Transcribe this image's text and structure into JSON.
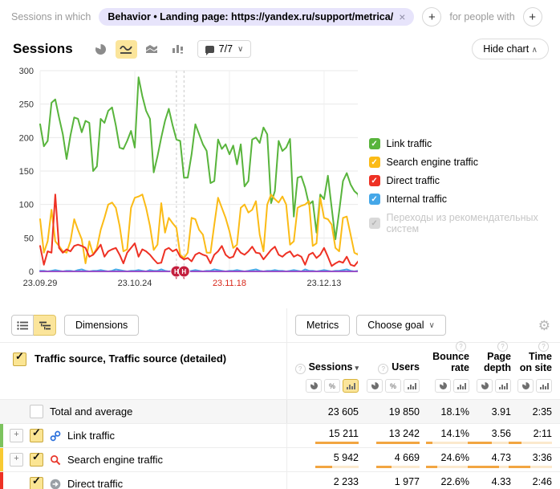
{
  "colors": {
    "accent_selected": "#fbe59b",
    "chip_bg": "#e7e4fb",
    "bar_fill": "#f2a541",
    "bar_track": "#fbe9cd",
    "grid": "#e9e9e9",
    "tick_highlight": "#d8271a"
  },
  "filter_bar": {
    "prefix_label": "Sessions in which",
    "chip_text": "Behavior • Landing page: https://yandex.ru/support/metrica/",
    "suffix_label": "for people with"
  },
  "chart_header": {
    "title": "Sessions",
    "segments_value": "7/7",
    "hide_chart_label": "Hide chart"
  },
  "chart_data": {
    "type": "line",
    "ylim": [
      0,
      300
    ],
    "yticks": [
      0,
      50,
      100,
      150,
      200,
      250,
      300
    ],
    "x_ticks": [
      {
        "day": 0,
        "label": "23.09.29",
        "highlight": false
      },
      {
        "day": 25,
        "label": "23.10.24",
        "highlight": false
      },
      {
        "day": 50,
        "label": "23.11.18",
        "highlight": true
      },
      {
        "day": 75,
        "label": "23.12.13",
        "highlight": false
      }
    ],
    "annotations": {
      "days": [
        36,
        38
      ],
      "label": "Н",
      "color": "#c41f3e"
    },
    "series": [
      {
        "name": "Link traffic",
        "color": "#58b43c",
        "values": [
          220,
          187,
          195,
          252,
          257,
          230,
          205,
          168,
          203,
          230,
          228,
          208,
          225,
          222,
          150,
          157,
          228,
          222,
          240,
          245,
          218,
          185,
          183,
          195,
          210,
          185,
          290,
          262,
          240,
          228,
          148,
          172,
          200,
          225,
          243,
          218,
          197,
          195,
          140,
          140,
          175,
          220,
          205,
          190,
          180,
          132,
          135,
          197,
          183,
          190,
          175,
          188,
          160,
          190,
          127,
          135,
          197,
          200,
          192,
          215,
          205,
          102,
          120,
          195,
          180,
          185,
          198,
          82,
          140,
          142,
          125,
          100,
          105,
          58,
          115,
          108,
          143,
          95,
          48,
          90,
          135,
          147,
          130,
          120,
          115,
          70,
          85,
          120,
          122,
          50
        ]
      },
      {
        "name": "Search engine traffic",
        "color": "#fbbb16",
        "values": [
          78,
          28,
          45,
          92,
          45,
          38,
          30,
          28,
          45,
          78,
          62,
          48,
          12,
          45,
          25,
          35,
          62,
          80,
          100,
          103,
          95,
          68,
          30,
          33,
          95,
          110,
          112,
          115,
          95,
          68,
          32,
          40,
          102,
          58,
          80,
          72,
          65,
          25,
          20,
          28,
          80,
          78,
          62,
          55,
          28,
          28,
          70,
          110,
          95,
          80,
          60,
          35,
          40,
          95,
          100,
          88,
          92,
          105,
          55,
          30,
          100,
          115,
          108,
          103,
          112,
          100,
          40,
          45,
          95,
          98,
          100,
          105,
          38,
          42,
          110,
          80,
          78,
          70,
          35,
          30,
          80,
          82,
          55,
          28,
          25,
          60,
          68,
          30,
          25,
          28
        ]
      },
      {
        "name": "Direct traffic",
        "color": "#ee3124",
        "values": [
          38,
          10,
          30,
          28,
          115,
          35,
          28,
          33,
          30,
          38,
          40,
          38,
          35,
          22,
          25,
          32,
          40,
          22,
          30,
          33,
          35,
          25,
          12,
          28,
          35,
          42,
          22,
          33,
          30,
          25,
          18,
          12,
          13,
          32,
          35,
          30,
          33,
          22,
          18,
          20,
          15,
          25,
          28,
          25,
          23,
          12,
          25,
          30,
          38,
          25,
          20,
          22,
          35,
          28,
          25,
          30,
          37,
          28,
          27,
          18,
          25,
          32,
          37,
          25,
          22,
          27,
          30,
          22,
          25,
          22,
          10,
          25,
          28,
          20,
          25,
          35,
          22,
          8,
          12,
          15,
          13,
          22,
          10,
          8,
          15,
          12,
          10,
          13,
          10,
          6
        ]
      },
      {
        "name": "Internal traffic",
        "color": "#45a7e8",
        "values": [
          1,
          1,
          0,
          1,
          2,
          1,
          0,
          1,
          1,
          0,
          2,
          3,
          1,
          0,
          1,
          1,
          2,
          1,
          0,
          1,
          3,
          2,
          1,
          0,
          1,
          1,
          2,
          1,
          0,
          2,
          1,
          1,
          3,
          1,
          0,
          1,
          2,
          1,
          1,
          0,
          1,
          2,
          1,
          0,
          1,
          1,
          3,
          2,
          1,
          0,
          1,
          1,
          2,
          1,
          0,
          1,
          2,
          3,
          1,
          0,
          1,
          1,
          2,
          1,
          1,
          0,
          1,
          2,
          1,
          0,
          3,
          1,
          1,
          0,
          1,
          2,
          1,
          0,
          1,
          1,
          2,
          3,
          1,
          0,
          1,
          4,
          2,
          1,
          1,
          0
        ]
      },
      {
        "name": "Переходы из рекомендательных систем",
        "color": "#9750c8",
        "values": [
          0,
          0,
          0,
          0,
          0,
          0,
          0,
          0,
          0,
          0,
          0,
          0,
          0,
          0,
          0,
          0,
          0,
          0,
          0,
          0,
          0,
          0,
          0,
          0,
          0,
          0,
          0,
          0,
          0,
          0,
          0,
          0,
          0,
          0,
          0,
          0,
          0,
          0,
          0,
          0,
          0,
          0,
          0,
          0,
          0,
          0,
          0,
          0,
          0,
          0,
          0,
          0,
          0,
          0,
          0,
          0,
          0,
          0,
          0,
          0,
          0,
          0,
          0,
          0,
          0,
          0,
          0,
          0,
          0,
          0,
          0,
          0,
          0,
          0,
          0,
          0,
          0,
          0,
          0,
          0,
          0,
          0,
          0,
          0,
          0,
          0,
          0,
          0,
          0,
          0
        ]
      }
    ],
    "legend": [
      {
        "label": "Link traffic",
        "color": "#58b43c",
        "disabled": false
      },
      {
        "label": "Search engine traffic",
        "color": "#fbbb16",
        "disabled": false
      },
      {
        "label": "Direct traffic",
        "color": "#ee3124",
        "disabled": false
      },
      {
        "label": "Internal traffic",
        "color": "#45a7e8",
        "disabled": false
      },
      {
        "label": "Переходы из рекомендательных систем",
        "color": "#d9d9d9",
        "disabled": true
      }
    ]
  },
  "table": {
    "toolbar": {
      "dimensions": "Dimensions",
      "metrics": "Metrics",
      "choose_goal": "Choose goal"
    },
    "dimension_header": "Traffic source, Traffic source (detailed)",
    "columns": [
      {
        "label": "Sessions",
        "sort": "desc",
        "toggles": [
          "pie",
          "percent",
          "bars"
        ],
        "active_toggle": "bars"
      },
      {
        "label": "Users",
        "sort": null,
        "toggles": [
          "pie",
          "percent",
          "bars"
        ],
        "active_toggle": null
      },
      {
        "label": "Bounce rate",
        "sort": null,
        "toggles": [
          "pie",
          "bars"
        ],
        "active_toggle": null
      },
      {
        "label": "Page depth",
        "sort": null,
        "toggles": [
          "pie",
          "bars"
        ],
        "active_toggle": null
      },
      {
        "label": "Time on site",
        "sort": null,
        "toggles": [
          "pie",
          "bars"
        ],
        "active_toggle": null
      }
    ],
    "rows": [
      {
        "label": "Total and average",
        "total": true,
        "checked": false,
        "expandable": false,
        "stripe": null,
        "icon": null,
        "cells": [
          {
            "v": "23 605"
          },
          {
            "v": "19 850"
          },
          {
            "v": "18.1%"
          },
          {
            "v": "3.91"
          },
          {
            "v": "2:35"
          }
        ]
      },
      {
        "label": "Link traffic",
        "total": false,
        "checked": true,
        "expandable": true,
        "stripe": "#7cc35e",
        "icon": "link",
        "cells": [
          {
            "v": "15 211",
            "bar": 100
          },
          {
            "v": "13 242",
            "bar": 100
          },
          {
            "v": "14.1%",
            "bar": 15
          },
          {
            "v": "3.56",
            "bar": 55
          },
          {
            "v": "2:11",
            "bar": 30
          }
        ]
      },
      {
        "label": "Search engine traffic",
        "total": false,
        "checked": true,
        "expandable": true,
        "stripe": "#f8ca32",
        "icon": "search",
        "cells": [
          {
            "v": "5 942",
            "bar": 39
          },
          {
            "v": "4 669",
            "bar": 35
          },
          {
            "v": "24.6%",
            "bar": 26
          },
          {
            "v": "4.73",
            "bar": 73
          },
          {
            "v": "3:36",
            "bar": 50
          }
        ]
      },
      {
        "label": "Direct traffic",
        "total": false,
        "checked": true,
        "expandable": false,
        "stripe": "#ee3124",
        "icon": "direct",
        "cells": [
          {
            "v": "2 233",
            "bar": 13
          },
          {
            "v": "1 977",
            "bar": 13
          },
          {
            "v": "22.6%",
            "bar": 24
          },
          {
            "v": "4.33",
            "bar": 67
          },
          {
            "v": "2:46",
            "bar": 38
          }
        ]
      }
    ]
  }
}
